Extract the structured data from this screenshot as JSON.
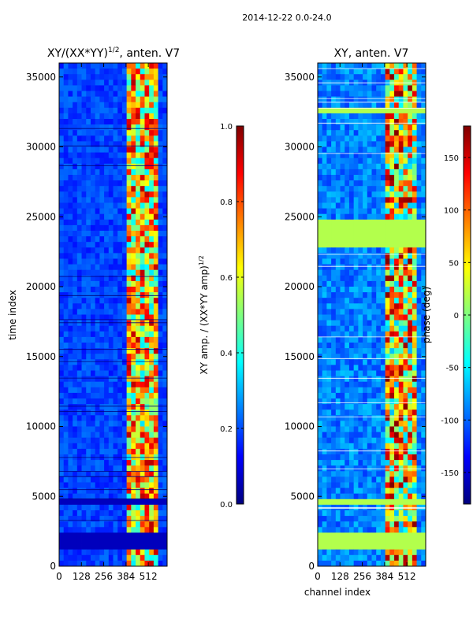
{
  "figure": {
    "suptitle": "2014-12-22 0.0-24.0"
  },
  "colors": {
    "jet_stops": [
      "#00007f",
      "#0000ff",
      "#007fff",
      "#00ffff",
      "#7fff7f",
      "#ffff00",
      "#ff7f00",
      "#ff0000",
      "#7f0000"
    ]
  },
  "chart_data": [
    {
      "type": "heatmap",
      "title": "XY/(XX*YY)^{1/2}, anten. V7",
      "title_main": "XY/(XX*YY)",
      "title_sup": "1/2",
      "title_tail": ", anten. V7",
      "xlabel": "",
      "ylabel": "time index",
      "xlim": [
        0,
        620
      ],
      "ylim": [
        0,
        36000
      ],
      "xticks": [
        0,
        128,
        256,
        384,
        512
      ],
      "yticks": [
        0,
        5000,
        10000,
        15000,
        20000,
        25000,
        30000,
        35000
      ],
      "colorbar": {
        "label": "XY amp. / (XX*YY amp)^{1/2}",
        "label_main": "XY amp. / (XX*YY amp)",
        "label_sup": "1/2",
        "range": [
          0.0,
          1.0
        ],
        "ticks": [
          "0.0",
          "0.2",
          "0.4",
          "0.6",
          "0.8",
          "1.0"
        ]
      },
      "masked_bands": [
        [
          1200,
          2400
        ],
        [
          4500,
          4800
        ]
      ],
      "bright_channel_range": [
        384,
        560
      ]
    },
    {
      "type": "heatmap",
      "title": "XY, anten. V7",
      "xlabel": "channel index",
      "ylabel": "",
      "xlim": [
        0,
        620
      ],
      "ylim": [
        0,
        36000
      ],
      "xticks": [
        0,
        128,
        256,
        384,
        512
      ],
      "yticks": [
        0,
        5000,
        10000,
        15000,
        20000,
        25000,
        30000,
        35000
      ],
      "colorbar": {
        "label": "phase (deg)",
        "range": [
          -180,
          180
        ],
        "ticks": [
          "-150",
          "-100",
          "-50",
          "0",
          "50",
          "100",
          "150"
        ]
      },
      "masked_bands": [
        [
          1200,
          2400
        ],
        [
          4500,
          4800
        ],
        [
          23000,
          24600
        ],
        [
          32300,
          32900
        ]
      ],
      "bright_channel_range": [
        384,
        560
      ]
    }
  ]
}
